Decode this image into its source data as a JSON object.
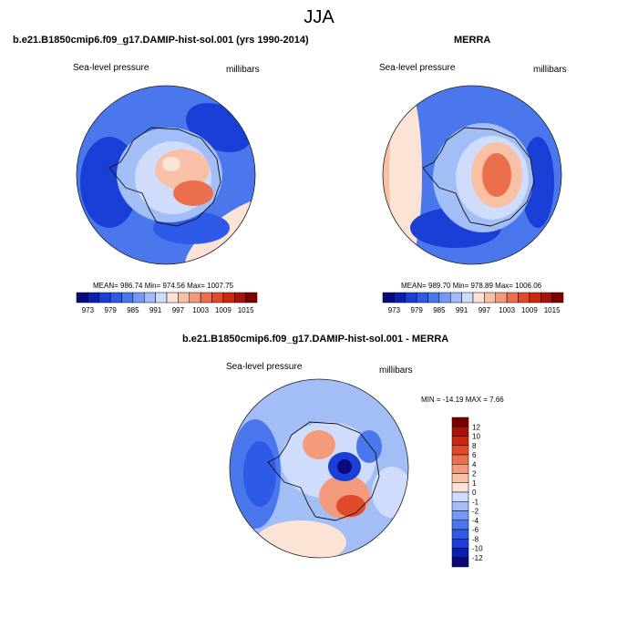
{
  "page_title": "JJA",
  "colors": {
    "diverging_scale": [
      "#0a0a7a",
      "#0a1fb0",
      "#1a3fd6",
      "#2d5ae6",
      "#4a78ec",
      "#7499f2",
      "#a3bdf7",
      "#cfdcfb",
      "#fbe3d6",
      "#f8c0a5",
      "#f39a7a",
      "#ec6f4d",
      "#e04a2a",
      "#c9290f",
      "#a81208",
      "#7a0000"
    ],
    "continent_outline": "#111111"
  },
  "chart_data": [
    {
      "type": "heatmap",
      "projection": "south-polar-stereographic",
      "title": "b.e21.B1850cmip6.f09_g17.DAMIP-hist-sol.001 (yrs 1990-2014)",
      "left_label": "Sea-level pressure",
      "right_label": "millibars",
      "stats_text": "MEAN= 986.74  Min= 974.56  Max= 1007.75",
      "stats": {
        "mean": 986.74,
        "min": 974.56,
        "max": 1007.75
      },
      "colorbar_orientation": "horizontal",
      "colorbar_ticks": [
        "973",
        "979",
        "985",
        "991",
        "997",
        "1003",
        "1009",
        "1015"
      ]
    },
    {
      "type": "heatmap",
      "projection": "south-polar-stereographic",
      "title": "MERRA",
      "left_label": "Sea-level pressure",
      "right_label": "millibars",
      "stats_text": "MEAN= 989.70  Min= 978.89  Max= 1006.06",
      "stats": {
        "mean": 989.7,
        "min": 978.89,
        "max": 1006.06
      },
      "colorbar_orientation": "horizontal",
      "colorbar_ticks": [
        "973",
        "979",
        "985",
        "991",
        "997",
        "1003",
        "1009",
        "1015"
      ]
    },
    {
      "type": "heatmap",
      "projection": "south-polar-stereographic",
      "title": "b.e21.B1850cmip6.f09_g17.DAMIP-hist-sol.001 - MERRA",
      "left_label": "Sea-level pressure",
      "right_label": "millibars",
      "stats_text": "MIN = -14.19 MAX =   7.66",
      "stats": {
        "min": -14.19,
        "max": 7.66
      },
      "colorbar_orientation": "vertical",
      "colorbar_ticks": [
        "12",
        "10",
        "8",
        "6",
        "4",
        "2",
        "1",
        "0",
        "-1",
        "-2",
        "-4",
        "-6",
        "-8",
        "-10",
        "-12"
      ]
    }
  ]
}
